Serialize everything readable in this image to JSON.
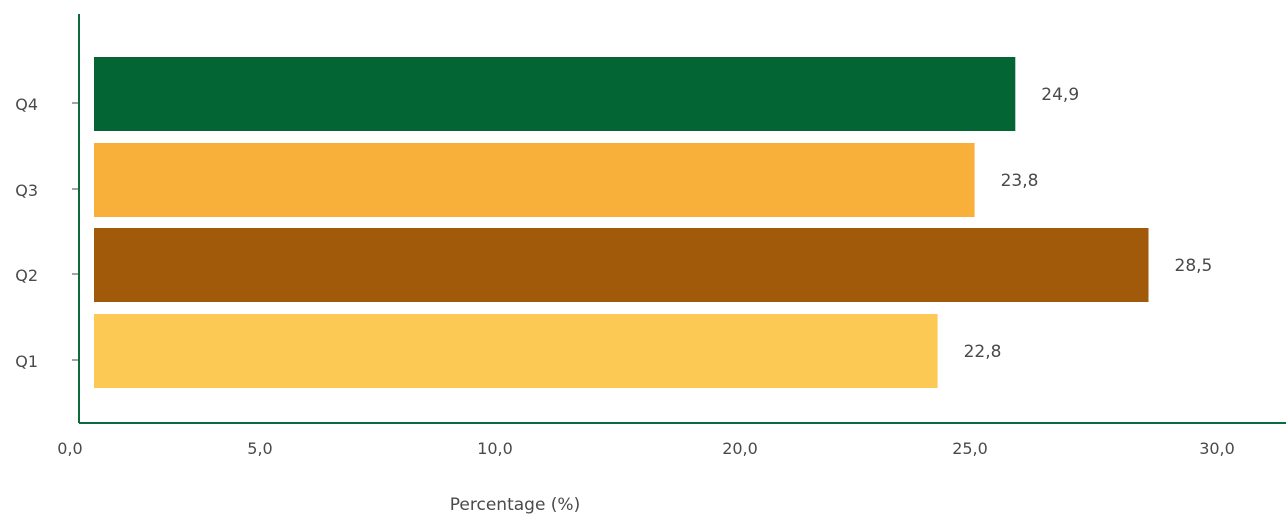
{
  "chart_data": {
    "type": "bar",
    "orientation": "horizontal",
    "categories": [
      "Q1",
      "Q2",
      "Q3",
      "Q4"
    ],
    "values": [
      22.8,
      28.5,
      23.8,
      24.9
    ],
    "value_labels": [
      "22,8",
      "28,5",
      "23,8",
      "24,9"
    ],
    "colors": [
      "#fdc955",
      "#a05a0a",
      "#f9b03b",
      "#026533"
    ],
    "x_ticks": [
      "0,0",
      "5,0",
      "10,0",
      "20,0",
      "25,0",
      "30,0"
    ],
    "xlabel": "Percentage (%)",
    "ylabel": "",
    "title": "",
    "grid": false,
    "legend": "none",
    "axis_color": "#0b6b3a"
  }
}
